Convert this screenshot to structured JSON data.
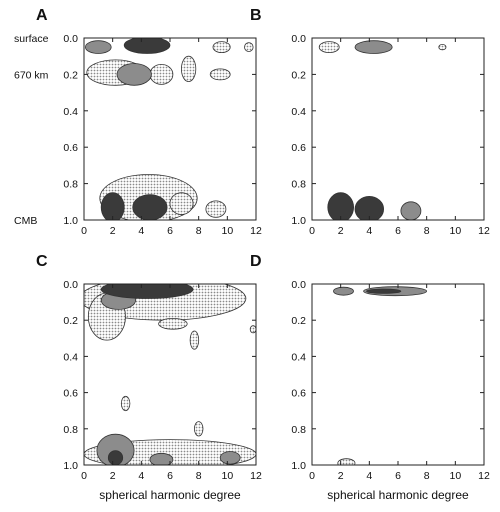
{
  "chart_data": [
    {
      "type": "heatmap",
      "panel_label": "A",
      "xlim": [
        0,
        12
      ],
      "ylim": [
        0.0,
        1.0
      ],
      "y_inverted": true,
      "xticks": [
        "0",
        "2",
        "4",
        "6",
        "8",
        "10",
        "12"
      ],
      "yticks": [
        "0.0",
        "0.2",
        "0.4",
        "0.6",
        "0.8",
        "1.0"
      ],
      "depth_labels": [
        {
          "text": "surface",
          "y": 0.0
        },
        {
          "text": "670 km",
          "y": 0.2
        },
        {
          "text": "CMB",
          "y": 1.0
        }
      ],
      "xlabel": "",
      "features": [
        {
          "x": 1.0,
          "y": 0.05,
          "rx": 0.9,
          "ry": 0.035,
          "level": 2
        },
        {
          "x": 4.4,
          "y": 0.04,
          "rx": 1.6,
          "ry": 0.045,
          "level": 3
        },
        {
          "x": 2.2,
          "y": 0.19,
          "rx": 2.0,
          "ry": 0.07,
          "level": 1
        },
        {
          "x": 3.5,
          "y": 0.2,
          "rx": 1.2,
          "ry": 0.06,
          "level": 2
        },
        {
          "x": 5.4,
          "y": 0.2,
          "rx": 0.8,
          "ry": 0.055,
          "level": 1
        },
        {
          "x": 7.3,
          "y": 0.17,
          "rx": 0.5,
          "ry": 0.07,
          "level": 1
        },
        {
          "x": 9.6,
          "y": 0.05,
          "rx": 0.6,
          "ry": 0.03,
          "level": 1
        },
        {
          "x": 11.5,
          "y": 0.05,
          "rx": 0.3,
          "ry": 0.025,
          "level": 1
        },
        {
          "x": 9.5,
          "y": 0.2,
          "rx": 0.7,
          "ry": 0.03,
          "level": 1
        },
        {
          "x": 4.5,
          "y": 0.88,
          "rx": 3.4,
          "ry": 0.13,
          "level": 1
        },
        {
          "x": 2.0,
          "y": 0.93,
          "rx": 0.8,
          "ry": 0.08,
          "level": 3
        },
        {
          "x": 4.6,
          "y": 0.93,
          "rx": 1.2,
          "ry": 0.07,
          "level": 3
        },
        {
          "x": 6.8,
          "y": 0.91,
          "rx": 0.8,
          "ry": 0.06,
          "level": 1
        },
        {
          "x": 9.2,
          "y": 0.94,
          "rx": 0.7,
          "ry": 0.045,
          "level": 1
        }
      ]
    },
    {
      "type": "heatmap",
      "panel_label": "B",
      "xlim": [
        0,
        12
      ],
      "ylim": [
        0.0,
        1.0
      ],
      "y_inverted": true,
      "xticks": [
        "0",
        "2",
        "4",
        "6",
        "8",
        "10",
        "12"
      ],
      "yticks": [
        "0.0",
        "0.2",
        "0.4",
        "0.6",
        "0.8",
        "1.0"
      ],
      "xlabel": "",
      "features": [
        {
          "x": 1.2,
          "y": 0.05,
          "rx": 0.7,
          "ry": 0.03,
          "level": 1
        },
        {
          "x": 4.3,
          "y": 0.05,
          "rx": 1.3,
          "ry": 0.035,
          "level": 2
        },
        {
          "x": 9.1,
          "y": 0.05,
          "rx": 0.25,
          "ry": 0.015,
          "level": 1
        },
        {
          "x": 2.0,
          "y": 0.93,
          "rx": 0.9,
          "ry": 0.08,
          "level": 3
        },
        {
          "x": 4.0,
          "y": 0.94,
          "rx": 1.0,
          "ry": 0.07,
          "level": 3
        },
        {
          "x": 6.9,
          "y": 0.95,
          "rx": 0.7,
          "ry": 0.05,
          "level": 2
        }
      ]
    },
    {
      "type": "heatmap",
      "panel_label": "C",
      "xlim": [
        0,
        12
      ],
      "ylim": [
        0.0,
        1.0
      ],
      "y_inverted": true,
      "xticks": [
        "0",
        "2",
        "4",
        "6",
        "8",
        "10",
        "12"
      ],
      "yticks": [
        "0.0",
        "0.2",
        "0.4",
        "0.6",
        "0.8",
        "1.0"
      ],
      "xlabel": "spherical harmonic degree",
      "features": [
        {
          "x": 5.5,
          "y": 0.08,
          "rx": 5.8,
          "ry": 0.12,
          "level": 1
        },
        {
          "x": 1.6,
          "y": 0.18,
          "rx": 1.3,
          "ry": 0.13,
          "level": 1
        },
        {
          "x": 4.4,
          "y": 0.03,
          "rx": 3.2,
          "ry": 0.05,
          "level": 3
        },
        {
          "x": 2.4,
          "y": 0.09,
          "rx": 1.2,
          "ry": 0.05,
          "level": 2
        },
        {
          "x": 6.2,
          "y": 0.22,
          "rx": 1.0,
          "ry": 0.03,
          "level": 1
        },
        {
          "x": 7.7,
          "y": 0.31,
          "rx": 0.3,
          "ry": 0.05,
          "level": 1
        },
        {
          "x": 11.8,
          "y": 0.25,
          "rx": 0.2,
          "ry": 0.02,
          "level": 1
        },
        {
          "x": 2.9,
          "y": 0.66,
          "rx": 0.3,
          "ry": 0.04,
          "level": 1
        },
        {
          "x": 8.0,
          "y": 0.8,
          "rx": 0.3,
          "ry": 0.04,
          "level": 1
        },
        {
          "x": 6.0,
          "y": 0.94,
          "rx": 6.0,
          "ry": 0.08,
          "level": 1
        },
        {
          "x": 2.2,
          "y": 0.92,
          "rx": 1.3,
          "ry": 0.09,
          "level": 2
        },
        {
          "x": 2.2,
          "y": 0.96,
          "rx": 0.5,
          "ry": 0.04,
          "level": 3
        },
        {
          "x": 5.4,
          "y": 0.97,
          "rx": 0.8,
          "ry": 0.035,
          "level": 2
        },
        {
          "x": 10.2,
          "y": 0.96,
          "rx": 0.7,
          "ry": 0.035,
          "level": 2
        }
      ]
    },
    {
      "type": "heatmap",
      "panel_label": "D",
      "xlim": [
        0,
        12
      ],
      "ylim": [
        0.0,
        1.0
      ],
      "y_inverted": true,
      "xticks": [
        "0",
        "2",
        "4",
        "6",
        "8",
        "10",
        "12"
      ],
      "yticks": [
        "0.0",
        "0.2",
        "0.4",
        "0.6",
        "0.8",
        "1.0"
      ],
      "xlabel": "spherical harmonic degree",
      "features": [
        {
          "x": 2.2,
          "y": 0.04,
          "rx": 0.7,
          "ry": 0.022,
          "level": 2
        },
        {
          "x": 5.8,
          "y": 0.04,
          "rx": 2.2,
          "ry": 0.025,
          "level": 2
        },
        {
          "x": 5.0,
          "y": 0.04,
          "rx": 1.2,
          "ry": 0.012,
          "level": 3
        },
        {
          "x": 2.4,
          "y": 0.99,
          "rx": 0.6,
          "ry": 0.025,
          "level": 1
        }
      ]
    }
  ]
}
